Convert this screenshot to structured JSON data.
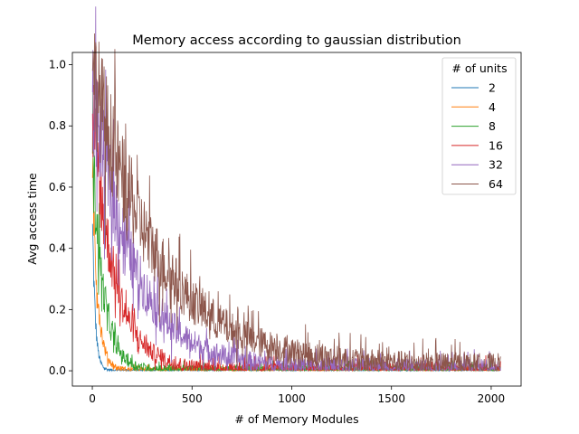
{
  "chart_data": {
    "type": "line",
    "title": "Memory access according to gaussian distribution",
    "xlabel": "# of Memory Modules",
    "ylabel": "Avg access time",
    "xlim": [
      -100,
      2150
    ],
    "ylim": [
      -0.05,
      1.04
    ],
    "xticks": [
      0,
      500,
      1000,
      1500,
      2000
    ],
    "xtick_labels": [
      "0",
      "500",
      "1000",
      "1500",
      "2000"
    ],
    "yticks": [
      0.0,
      0.2,
      0.4,
      0.6,
      0.8,
      1.0
    ],
    "ytick_labels": [
      "0.0",
      "0.2",
      "0.4",
      "0.6",
      "0.8",
      "1.0"
    ],
    "grid": false,
    "legend": {
      "title": "# of units",
      "placement": "top-right"
    },
    "x_range": [
      1,
      2048
    ],
    "series": [
      {
        "name": "2",
        "color": "#1f77b4",
        "start": 0.48,
        "tail": 0.002,
        "decay": 14,
        "noise": 0.004,
        "points": [
          [
            1,
            0.48
          ],
          [
            10,
            0.25
          ],
          [
            30,
            0.06
          ],
          [
            100,
            0.005
          ],
          [
            2048,
            0.002
          ]
        ]
      },
      {
        "name": "4",
        "color": "#ff7f0e",
        "start": 0.63,
        "tail": 0.003,
        "decay": 28,
        "noise": 0.008,
        "points": [
          [
            1,
            0.63
          ],
          [
            20,
            0.3
          ],
          [
            60,
            0.09
          ],
          [
            200,
            0.01
          ],
          [
            2048,
            0.003
          ]
        ]
      },
      {
        "name": "8",
        "color": "#2ca02c",
        "start": 0.71,
        "tail": 0.004,
        "decay": 55,
        "noise": 0.014,
        "points": [
          [
            1,
            0.71
          ],
          [
            30,
            0.38
          ],
          [
            100,
            0.12
          ],
          [
            300,
            0.02
          ],
          [
            2048,
            0.004
          ]
        ]
      },
      {
        "name": "16",
        "color": "#d62728",
        "start": 0.84,
        "tail": 0.006,
        "decay": 110,
        "noise": 0.02,
        "points": [
          [
            1,
            0.84
          ],
          [
            50,
            0.45
          ],
          [
            150,
            0.18
          ],
          [
            500,
            0.03
          ],
          [
            2048,
            0.006
          ]
        ]
      },
      {
        "name": "32",
        "color": "#9467bd",
        "start": 0.91,
        "tail": 0.01,
        "decay": 210,
        "noise": 0.028,
        "points": [
          [
            1,
            0.91
          ],
          [
            100,
            0.5
          ],
          [
            300,
            0.18
          ],
          [
            800,
            0.04
          ],
          [
            2048,
            0.01
          ]
        ]
      },
      {
        "name": "64",
        "color": "#8c564b",
        "start": 0.98,
        "tail": 0.018,
        "decay": 330,
        "noise": 0.034,
        "points": [
          [
            1,
            0.98
          ],
          [
            100,
            0.55
          ],
          [
            500,
            0.14
          ],
          [
            1000,
            0.05
          ],
          [
            2048,
            0.018
          ]
        ]
      }
    ]
  }
}
